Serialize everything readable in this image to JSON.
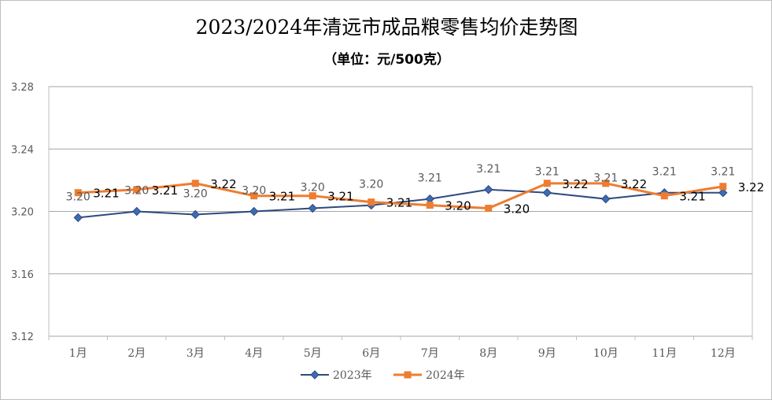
{
  "chart_data": {
    "type": "line",
    "title": "2023/2024年清远市成品粮零售均价走势图",
    "subtitle": "（单位：元/500克）",
    "categories": [
      "1月",
      "2月",
      "3月",
      "4月",
      "5月",
      "6月",
      "7月",
      "8月",
      "9月",
      "10月",
      "11月",
      "12月"
    ],
    "y_ticks": [
      "3.28",
      "3.24",
      "3.20",
      "3.16",
      "3.12"
    ],
    "ylim": [
      3.12,
      3.28
    ],
    "grid": true,
    "legend_position": "bottom",
    "series": [
      {
        "name": "2023年",
        "color": "#2E4A7D",
        "marker": "diamond",
        "values": [
          3.196,
          3.2,
          3.198,
          3.2,
          3.202,
          3.204,
          3.208,
          3.214,
          3.212,
          3.208,
          3.212,
          3.212
        ],
        "labels": [
          "3.20",
          "3.20",
          "3.20",
          "3.20",
          "3.20",
          "3.20",
          "3.21",
          "3.21",
          "3.21",
          "3.21",
          "3.21",
          "3.21"
        ]
      },
      {
        "name": "2024年",
        "color": "#ED7D31",
        "marker": "square",
        "values": [
          3.212,
          3.214,
          3.218,
          3.21,
          3.21,
          3.206,
          3.204,
          3.202,
          3.218,
          3.218,
          3.21,
          3.216
        ],
        "labels": [
          "3.21",
          "3.21",
          "3.22",
          "3.21",
          "3.21",
          "3.21",
          "3.20",
          "3.20",
          "3.22",
          "3.22",
          "3.21",
          "3.22"
        ]
      }
    ]
  }
}
